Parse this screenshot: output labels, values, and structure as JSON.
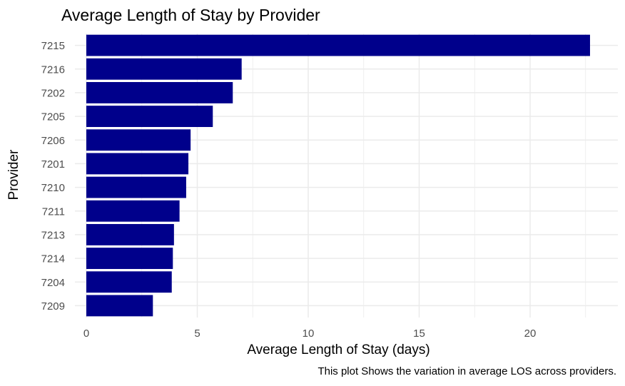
{
  "chart_data": {
    "type": "bar",
    "orientation": "horizontal",
    "title": "Average Length of Stay by Provider",
    "xlabel": "Average Length of Stay (days)",
    "ylabel": "Provider",
    "caption": "This plot Shows the variation in average LOS across providers.",
    "categories": [
      "7215",
      "7216",
      "7202",
      "7205",
      "7206",
      "7201",
      "7210",
      "7211",
      "7213",
      "7214",
      "7204",
      "7209"
    ],
    "values": [
      22.7,
      7.0,
      6.6,
      5.7,
      4.7,
      4.6,
      4.5,
      4.2,
      3.95,
      3.9,
      3.85,
      3.0
    ],
    "xlim": [
      0,
      23.9
    ],
    "x_ticks": [
      0,
      5,
      10,
      15,
      20
    ],
    "grid": true,
    "bar_color": "#00008B",
    "grid_color": "#EBEBEB",
    "tick_label_color": "#4D4D4D"
  }
}
